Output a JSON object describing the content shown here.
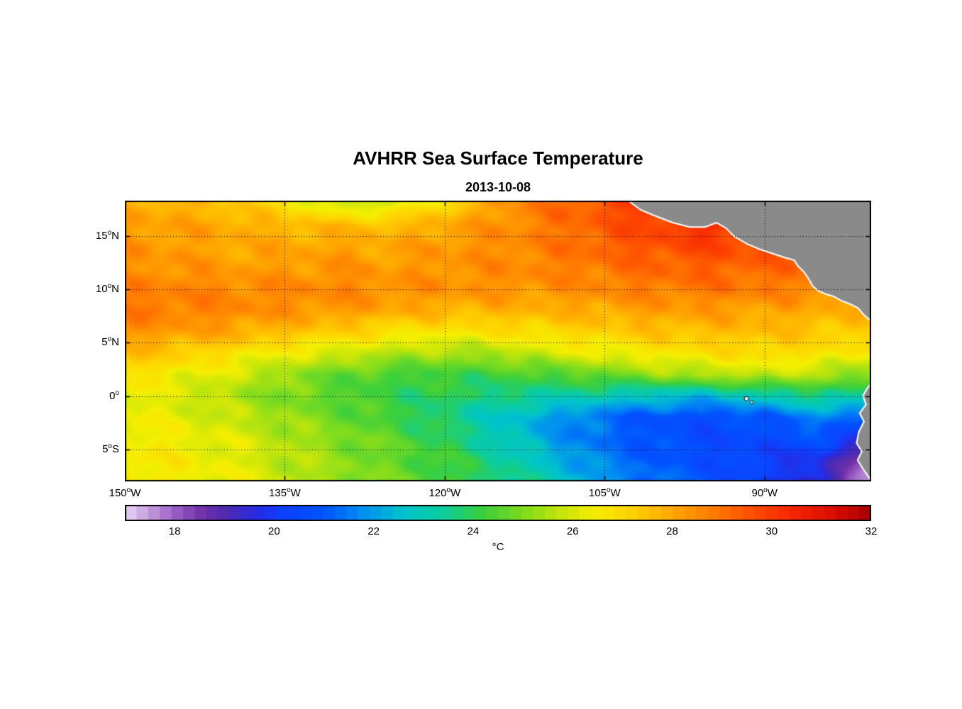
{
  "title": "AVHRR Sea Surface Temperature",
  "subtitle": "2013-10-08",
  "colorbar": {
    "label": "°C",
    "min": 17,
    "max": 32,
    "segments": 64,
    "ticks": [
      "18",
      "20",
      "22",
      "24",
      "26",
      "28",
      "30",
      "32"
    ],
    "tick_values": [
      18,
      20,
      22,
      24,
      26,
      28,
      30,
      32
    ],
    "stops": [
      [
        17.0,
        "#e8d7f2"
      ],
      [
        17.5,
        "#c39ade"
      ],
      [
        18.0,
        "#9b5fc4"
      ],
      [
        18.6,
        "#6f2fa8"
      ],
      [
        19.1,
        "#4b2bb4"
      ],
      [
        19.6,
        "#2a2ae0"
      ],
      [
        20.2,
        "#0d41ff"
      ],
      [
        21.0,
        "#0055ff"
      ],
      [
        21.8,
        "#0090f0"
      ],
      [
        22.6,
        "#00c3cc"
      ],
      [
        23.4,
        "#0ccd9c"
      ],
      [
        24.2,
        "#3ccf3c"
      ],
      [
        25.0,
        "#7edc1e"
      ],
      [
        25.8,
        "#c8e60a"
      ],
      [
        26.4,
        "#f5ef00"
      ],
      [
        27.2,
        "#ffd200"
      ],
      [
        28.0,
        "#ffa800"
      ],
      [
        28.8,
        "#ff7d00"
      ],
      [
        29.6,
        "#ff4e00"
      ],
      [
        30.4,
        "#f72600"
      ],
      [
        31.2,
        "#dd0f00"
      ],
      [
        32.0,
        "#a80000"
      ]
    ]
  },
  "axes": {
    "lon_min": -150,
    "lon_max": -80,
    "lat_min": -8,
    "lat_max": 18.3,
    "x_ticks": [
      {
        "num": "150",
        "deg": "o",
        "dir": "W",
        "lon": -150
      },
      {
        "num": "135",
        "deg": "o",
        "dir": "W",
        "lon": -135
      },
      {
        "num": "120",
        "deg": "o",
        "dir": "W",
        "lon": -120
      },
      {
        "num": "105",
        "deg": "o",
        "dir": "W",
        "lon": -105
      },
      {
        "num": "90",
        "deg": "o",
        "dir": "W",
        "lon": -90
      }
    ],
    "y_ticks": [
      {
        "num": "15",
        "deg": "o",
        "dir": "N",
        "lat": 15
      },
      {
        "num": "10",
        "deg": "o",
        "dir": "N",
        "lat": 10
      },
      {
        "num": "5",
        "deg": "o",
        "dir": "N",
        "lat": 5
      },
      {
        "num": "0",
        "deg": "o",
        "dir": "",
        "lat": 0
      },
      {
        "num": "5",
        "deg": "o",
        "dir": "S",
        "lat": -5
      }
    ]
  },
  "map": {
    "land_color": "#8a8a8a",
    "coast_color": "#ffffff",
    "grid_color": "#000000",
    "land_polygons": {
      "central_america": [
        [
          -102.8,
          18.4
        ],
        [
          -101.6,
          17.5
        ],
        [
          -100.4,
          17.0
        ],
        [
          -98.6,
          16.3
        ],
        [
          -97.0,
          15.9
        ],
        [
          -95.6,
          15.9
        ],
        [
          -94.5,
          16.3
        ],
        [
          -93.6,
          15.8
        ],
        [
          -92.8,
          15.0
        ],
        [
          -91.6,
          14.3
        ],
        [
          -90.4,
          13.8
        ],
        [
          -89.2,
          13.4
        ],
        [
          -88.0,
          13.0
        ],
        [
          -87.2,
          12.8
        ],
        [
          -86.8,
          12.2
        ],
        [
          -86.2,
          11.6
        ],
        [
          -85.8,
          11.0
        ],
        [
          -85.4,
          10.3
        ],
        [
          -84.9,
          9.9
        ],
        [
          -84.2,
          9.6
        ],
        [
          -83.5,
          9.4
        ],
        [
          -82.8,
          9.0
        ],
        [
          -82.0,
          8.7
        ],
        [
          -81.2,
          8.3
        ],
        [
          -80.6,
          7.6
        ],
        [
          -80.1,
          7.2
        ],
        [
          -79.7,
          6.5
        ],
        [
          -79.7,
          18.4
        ]
      ],
      "south_america": [
        [
          -79.7,
          1.4
        ],
        [
          -80.3,
          0.7
        ],
        [
          -80.7,
          0.0
        ],
        [
          -80.4,
          -0.8
        ],
        [
          -81.0,
          -1.6
        ],
        [
          -80.6,
          -2.4
        ],
        [
          -81.1,
          -3.4
        ],
        [
          -81.3,
          -4.4
        ],
        [
          -80.8,
          -5.2
        ],
        [
          -81.2,
          -6.0
        ],
        [
          -80.7,
          -6.8
        ],
        [
          -80.2,
          -7.5
        ],
        [
          -79.7,
          -8.3
        ]
      ]
    },
    "islands": [
      {
        "lon": -91.7,
        "lat": -0.25,
        "r": 3
      },
      {
        "lon": -91.2,
        "lat": -0.6,
        "r": 2
      }
    ]
  },
  "chart_data": {
    "type": "heatmap",
    "title": "AVHRR Sea Surface Temperature",
    "subtitle": "2013-10-08",
    "units": "°C",
    "xlabel_ticks": [
      "150°W",
      "135°W",
      "120°W",
      "105°W",
      "90°W"
    ],
    "ylabel_ticks": [
      "15°N",
      "10°N",
      "5°N",
      "0°",
      "5°S"
    ],
    "lon_range": [
      -150,
      -80
    ],
    "lat_range": [
      -8,
      18.3
    ],
    "colorbar_range": [
      17,
      32
    ],
    "colorbar_ticks": [
      18,
      20,
      22,
      24,
      26,
      28,
      30,
      32
    ],
    "legend_position": "bottom",
    "grid": "dotted",
    "lons": [
      -150,
      -145,
      -140,
      -135,
      -130,
      -125,
      -120,
      -115,
      -110,
      -105,
      -100,
      -95,
      -90,
      -85,
      -80
    ],
    "lats": [
      -8,
      -6,
      -4,
      -2,
      0,
      2,
      4,
      6,
      8,
      10,
      12,
      14,
      16,
      18
    ],
    "sst_c": [
      [
        26.6,
        26.5,
        26.3,
        25.8,
        25.3,
        24.8,
        24.3,
        23.8,
        23.0,
        22.0,
        21.3,
        20.8,
        20.4,
        19.4,
        17.4
      ],
      [
        26.6,
        26.5,
        26.2,
        25.7,
        25.2,
        24.7,
        24.2,
        23.5,
        22.5,
        21.5,
        21.0,
        20.6,
        20.2,
        19.8,
        18.2
      ],
      [
        26.5,
        26.4,
        26.1,
        25.6,
        25.1,
        24.6,
        24.0,
        23.0,
        22.0,
        21.3,
        20.8,
        20.5,
        20.5,
        20.8,
        19.6
      ],
      [
        26.4,
        26.2,
        25.8,
        25.3,
        24.8,
        24.2,
        23.6,
        22.8,
        22.0,
        21.3,
        20.8,
        20.6,
        21.0,
        21.6,
        21.2
      ],
      [
        26.3,
        26.0,
        25.5,
        25.0,
        24.5,
        24.1,
        23.9,
        23.6,
        23.3,
        23.0,
        22.6,
        22.5,
        23.0,
        23.6,
        23.2
      ],
      [
        26.8,
        26.4,
        26.0,
        25.3,
        24.7,
        24.3,
        24.2,
        24.2,
        24.4,
        24.8,
        25.2,
        25.6,
        25.8,
        25.5,
        25.0
      ],
      [
        27.6,
        27.3,
        26.8,
        26.3,
        26.0,
        25.6,
        25.4,
        25.5,
        26.0,
        26.3,
        26.6,
        26.8,
        27.0,
        26.8,
        26.4
      ],
      [
        28.4,
        28.2,
        28.0,
        27.6,
        27.2,
        26.8,
        26.6,
        26.8,
        27.0,
        27.2,
        27.5,
        27.6,
        27.6,
        27.4,
        27.2
      ],
      [
        28.9,
        28.8,
        28.6,
        28.4,
        28.3,
        28.0,
        27.8,
        27.8,
        27.8,
        28.0,
        28.2,
        28.2,
        28.1,
        27.9,
        27.8
      ],
      [
        28.7,
        28.7,
        28.6,
        28.6,
        28.6,
        28.5,
        28.4,
        28.4,
        28.4,
        28.6,
        28.8,
        28.9,
        28.8,
        28.6,
        28.5
      ],
      [
        28.4,
        28.4,
        28.2,
        28.2,
        28.4,
        28.2,
        28.4,
        28.5,
        28.7,
        28.9,
        29.2,
        29.3,
        29.2,
        29.0,
        28.8
      ],
      [
        28.4,
        28.2,
        28.0,
        28.0,
        28.1,
        28.0,
        28.3,
        28.5,
        28.8,
        29.3,
        29.6,
        29.8,
        29.6,
        29.2,
        29.0
      ],
      [
        28.2,
        28.1,
        28.0,
        27.7,
        27.6,
        27.6,
        28.0,
        28.4,
        28.9,
        29.4,
        29.9,
        30.3,
        30.0,
        29.6,
        29.5
      ],
      [
        27.9,
        27.8,
        27.4,
        26.8,
        25.9,
        25.9,
        27.0,
        28.2,
        29.0,
        29.6,
        30.2,
        30.5,
        30.4,
        30.0,
        29.6
      ]
    ]
  }
}
